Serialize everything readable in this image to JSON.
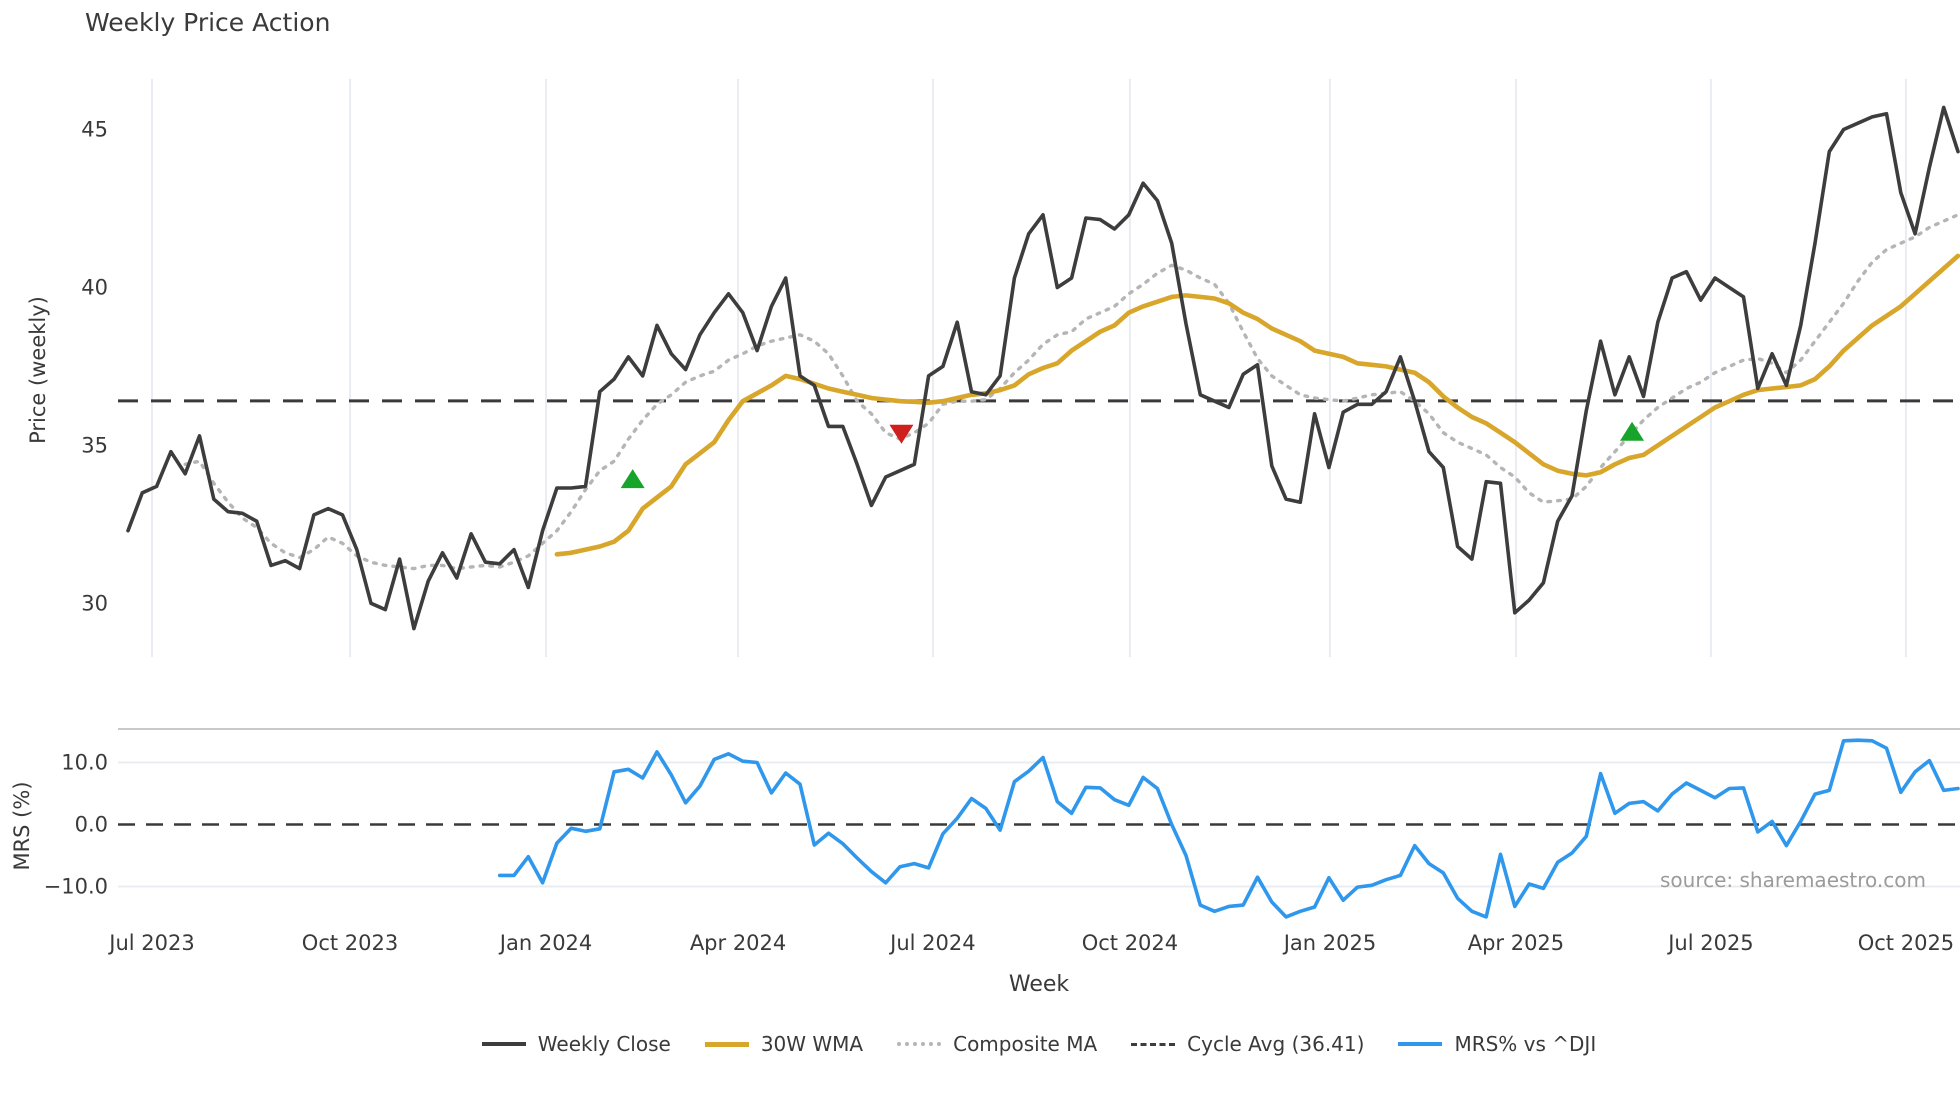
{
  "title": "Weekly Price Action",
  "source_note": "source: sharemaestro.com",
  "axes": {
    "price_label": "Price (weekly)",
    "mrs_label": "MRS (%)",
    "x_label": "Week"
  },
  "colors": {
    "weekly_close": "#3d3d3d",
    "wma": "#d8a62a",
    "composite": "#b5b5b5",
    "cycle_avg": "#3a3a3a",
    "mrs": "#2f97ec",
    "buy_marker": "#17a42a",
    "sell_marker": "#cf2020",
    "gridline": "#e9edf1",
    "mrs_spine": "#c9c9c9",
    "tick_text": "#3a3a3a",
    "source_text": "#9b9b9b"
  },
  "legend": {
    "items": [
      {
        "label": "Weekly Close",
        "style": "solid-dark"
      },
      {
        "label": "30W WMA",
        "style": "solid-gold"
      },
      {
        "label": "Composite MA",
        "style": "dotted-gray"
      },
      {
        "label": "Cycle Avg (36.41)",
        "style": "dashed-dark"
      },
      {
        "label": "MRS% vs ^DJI",
        "style": "solid-blue"
      }
    ]
  },
  "chart_data": {
    "type": "line",
    "title": "Weekly Price Action",
    "xlabel": "Week",
    "x_mode": "weekly_index",
    "n_weeks": 129,
    "x_ticks": [
      {
        "label": "Jul 2023",
        "i": 1.68
      },
      {
        "label": "Oct 2023",
        "i": 15.53
      },
      {
        "label": "Jan 2024",
        "i": 29.24
      },
      {
        "label": "Apr 2024",
        "i": 42.67
      },
      {
        "label": "Jul 2024",
        "i": 56.3
      },
      {
        "label": "Oct 2024",
        "i": 70.08
      },
      {
        "label": "Jan 2025",
        "i": 84.07
      },
      {
        "label": "Apr 2025",
        "i": 97.08
      },
      {
        "label": "Jul 2025",
        "i": 110.72
      },
      {
        "label": "Oct 2025",
        "i": 124.36
      }
    ],
    "price_panel": {
      "ylabel": "Price (weekly)",
      "ylim": [
        28.3,
        46.6
      ],
      "grid": "vertical-only",
      "yticks": [
        {
          "label": "45",
          "v": 45
        },
        {
          "label": "40",
          "v": 40
        },
        {
          "label": "35",
          "v": 35
        },
        {
          "label": "30",
          "v": 30
        }
      ],
      "cycle_avg": 36.41,
      "series": [
        {
          "name": "Weekly Close",
          "color": "#3d3d3d",
          "style": "solid",
          "start_index": 0,
          "values": [
            32.3,
            33.5,
            33.7,
            34.8,
            34.1,
            35.3,
            33.3,
            32.9,
            32.85,
            32.6,
            31.2,
            31.35,
            31.1,
            32.8,
            33.0,
            32.8,
            31.7,
            30.0,
            29.8,
            31.4,
            29.2,
            30.7,
            31.6,
            30.8,
            32.2,
            31.3,
            31.25,
            31.7,
            30.5,
            32.3,
            33.65,
            33.65,
            33.7,
            36.7,
            37.1,
            37.8,
            37.2,
            38.8,
            37.9,
            37.4,
            38.5,
            39.2,
            39.8,
            39.2,
            38.0,
            39.4,
            40.3,
            37.2,
            36.9,
            35.6,
            35.6,
            34.4,
            33.1,
            34.0,
            34.2,
            34.4,
            37.2,
            37.5,
            38.9,
            36.7,
            36.6,
            37.2,
            40.3,
            41.7,
            42.3,
            40.0,
            40.3,
            42.2,
            42.15,
            41.85,
            42.3,
            43.3,
            42.75,
            41.4,
            38.85,
            36.6,
            36.4,
            36.2,
            37.25,
            37.55,
            34.35,
            33.3,
            33.2,
            36.0,
            34.3,
            36.05,
            36.3,
            36.3,
            36.7,
            37.8,
            36.4,
            34.8,
            34.3,
            31.8,
            31.4,
            33.85,
            33.8,
            29.7,
            30.1,
            30.65,
            32.6,
            33.4,
            36.1,
            38.3,
            36.6,
            37.8,
            36.55,
            38.9,
            40.3,
            40.5,
            39.6,
            40.3,
            40.0,
            39.7,
            36.8,
            37.9,
            36.9,
            38.8,
            41.4,
            44.3,
            45.0,
            45.2,
            45.4,
            45.5,
            43.0,
            41.7,
            43.8,
            45.7,
            44.3
          ]
        },
        {
          "name": "30W WMA",
          "color": "#d8a62a",
          "style": "solid",
          "start_index": 30,
          "values": [
            31.55,
            31.6,
            31.7,
            31.8,
            31.95,
            32.3,
            33.0,
            33.35,
            33.7,
            34.4,
            34.75,
            35.1,
            35.8,
            36.4,
            36.65,
            36.9,
            37.2,
            37.1,
            36.95,
            36.8,
            36.7,
            36.6,
            36.5,
            36.45,
            36.4,
            36.38,
            36.35,
            36.4,
            36.5,
            36.6,
            36.65,
            36.75,
            36.9,
            37.25,
            37.45,
            37.6,
            38.0,
            38.3,
            38.6,
            38.8,
            39.2,
            39.4,
            39.55,
            39.7,
            39.75,
            39.7,
            39.65,
            39.5,
            39.2,
            39.0,
            38.7,
            38.5,
            38.3,
            38.0,
            37.9,
            37.8,
            37.6,
            37.55,
            37.5,
            37.4,
            37.3,
            37.0,
            36.55,
            36.2,
            35.9,
            35.7,
            35.4,
            35.1,
            34.75,
            34.4,
            34.2,
            34.1,
            34.05,
            34.15,
            34.4,
            34.6,
            34.7,
            35.0,
            35.3,
            35.6,
            35.9,
            36.2,
            36.4,
            36.6,
            36.75,
            36.8,
            36.85,
            36.9,
            37.1,
            37.5,
            38.0,
            38.4,
            38.8,
            39.1,
            39.4,
            39.8,
            40.2,
            40.6,
            41.0
          ]
        },
        {
          "name": "Composite MA",
          "color": "#b5b5b5",
          "style": "dotted",
          "start_index": 4,
          "values": [
            34.4,
            34.5,
            33.8,
            33.2,
            32.7,
            32.4,
            31.9,
            31.6,
            31.45,
            31.7,
            32.1,
            31.9,
            31.5,
            31.3,
            31.2,
            31.15,
            31.1,
            31.2,
            31.2,
            31.1,
            31.15,
            31.2,
            31.15,
            31.3,
            31.5,
            31.9,
            32.3,
            32.9,
            33.6,
            34.2,
            34.5,
            35.2,
            35.8,
            36.3,
            36.6,
            37.0,
            37.2,
            37.35,
            37.7,
            37.9,
            38.15,
            38.3,
            38.4,
            38.5,
            38.3,
            37.9,
            37.2,
            36.4,
            36.0,
            35.4,
            35.2,
            35.4,
            35.7,
            36.3,
            36.4,
            36.4,
            36.45,
            36.8,
            37.3,
            37.7,
            38.2,
            38.5,
            38.6,
            39.0,
            39.2,
            39.4,
            39.8,
            40.1,
            40.45,
            40.7,
            40.55,
            40.3,
            40.1,
            39.5,
            38.6,
            37.75,
            37.2,
            36.9,
            36.6,
            36.5,
            36.45,
            36.4,
            36.5,
            36.6,
            36.65,
            36.7,
            36.4,
            36.0,
            35.4,
            35.1,
            34.9,
            34.7,
            34.3,
            34.0,
            33.5,
            33.2,
            33.25,
            33.3,
            33.7,
            34.3,
            34.8,
            35.3,
            35.8,
            36.2,
            36.5,
            36.8,
            37.0,
            37.3,
            37.5,
            37.7,
            37.75,
            37.6,
            37.3,
            37.7,
            38.3,
            38.9,
            39.5,
            40.2,
            40.8,
            41.2,
            41.4,
            41.6,
            41.9,
            42.1,
            42.3
          ]
        }
      ],
      "markers": [
        {
          "signal": "buy",
          "shape": "triangle-up",
          "color": "#17a42a",
          "i": 35.3,
          "value": 33.9
        },
        {
          "signal": "sell",
          "shape": "triangle-down",
          "color": "#cf2020",
          "i": 54.1,
          "value": 35.4
        },
        {
          "signal": "buy",
          "shape": "triangle-up",
          "color": "#17a42a",
          "i": 105.2,
          "value": 35.4
        }
      ]
    },
    "mrs_panel": {
      "ylabel": "MRS (%)",
      "ylim": [
        -15.4,
        15.4
      ],
      "grid": "horizontal-only",
      "yticks": [
        {
          "label": "10.0",
          "v": 10
        },
        {
          "label": "0.0",
          "v": 0
        },
        {
          "label": "−10.0",
          "v": -10
        }
      ],
      "zero_line": 0,
      "series": [
        {
          "name": "MRS% vs ^DJI",
          "color": "#2f97ec",
          "style": "solid",
          "start_index": 26,
          "values": [
            -8.2,
            -8.2,
            -5.2,
            -9.4,
            -3.0,
            -0.6,
            -1.1,
            -0.7,
            8.5,
            8.9,
            7.5,
            11.7,
            8.0,
            3.5,
            6.2,
            10.5,
            11.4,
            10.2,
            10.0,
            5.1,
            8.3,
            6.5,
            -3.3,
            -1.4,
            -3.1,
            -5.4,
            -7.6,
            -9.4,
            -6.8,
            -6.3,
            -7.0,
            -1.5,
            1.0,
            4.2,
            2.6,
            -0.9,
            6.9,
            8.6,
            10.8,
            3.7,
            1.8,
            6.0,
            5.9,
            4.0,
            3.1,
            7.6,
            5.8,
            0.0,
            -5.0,
            -13.0,
            -14.0,
            -13.2,
            -13.0,
            -8.5,
            -12.5,
            -14.9,
            -14.0,
            -13.3,
            -8.6,
            -12.2,
            -10.1,
            -9.8,
            -8.9,
            -8.2,
            -3.4,
            -6.3,
            -7.8,
            -11.9,
            -14.0,
            -14.9,
            -4.8,
            -13.2,
            -9.6,
            -10.3,
            -6.1,
            -4.6,
            -1.9,
            8.2,
            1.8,
            3.4,
            3.7,
            2.2,
            4.9,
            6.7,
            5.5,
            4.3,
            5.8,
            5.9,
            -1.2,
            0.5,
            -3.4,
            0.5,
            4.9,
            5.5,
            13.5,
            13.6,
            13.5,
            12.3,
            5.2,
            8.5,
            10.3,
            5.5,
            5.8
          ]
        }
      ]
    }
  }
}
